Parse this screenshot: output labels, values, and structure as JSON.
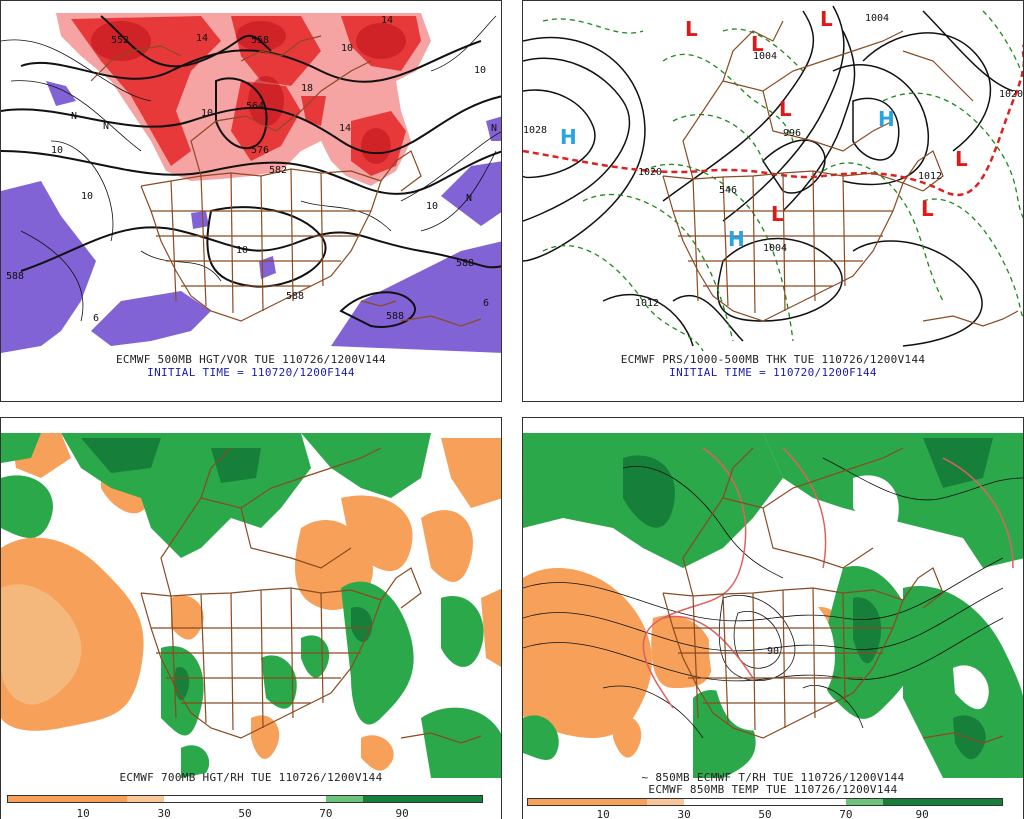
{
  "panels": {
    "top_left": {
      "caption1": "ECMWF 500MB HGT/VOR TUE 110726/1200V144",
      "caption2": "INITIAL TIME = 110720/1200F144",
      "labels": [
        "552",
        "558",
        "564",
        "576",
        "582",
        "588",
        "588",
        "588",
        "588",
        "10",
        "10",
        "10",
        "10",
        "10",
        "10",
        "10",
        "14",
        "14",
        "14",
        "18",
        "N",
        "N",
        "N",
        "N",
        "6",
        "6"
      ]
    },
    "top_right": {
      "caption1": "ECMWF PRS/1000-500MB THK TUE 110726/1200V144",
      "caption2": "INITIAL TIME = 110720/1200F144",
      "labels": [
        "1028",
        "1020",
        "1012",
        "1012",
        "1004",
        "1004",
        "1020",
        "996",
        "546",
        "1004"
      ],
      "highs": [
        "H",
        "H",
        "H"
      ],
      "lows": [
        "L",
        "L",
        "L",
        "L",
        "L",
        "L",
        "L"
      ]
    },
    "bottom_left": {
      "caption1": "ECMWF 700MB HGT/RH TUE 110726/1200V144",
      "colorbar_ticks": [
        "10",
        "30",
        "50",
        "70",
        "90"
      ]
    },
    "bottom_right": {
      "caption1": "~ 850MB ECMWF T/RH TUE 110726/1200V144",
      "caption2": "ECMWF 850MB TEMP TUE 110726/1200V144",
      "labels": [
        "90"
      ],
      "colorbar_ticks": [
        "10",
        "30",
        "50",
        "70",
        "90"
      ]
    }
  },
  "colors": {
    "vorticity_red": "#e8393a",
    "vorticity_light": "#f6a3a3",
    "neg_vorticity": "#8263d6",
    "dry_orange": "#f7a05a",
    "moist_green": "#2aa84a",
    "moist_dark": "#16803a",
    "borders": "#8a4a22",
    "high_blue": "#28a4e0",
    "low_red": "#e01818",
    "thickness_green": "#1a8a1a",
    "thickness_red": "#dd2020",
    "caption_blue": "#1a1ab0"
  }
}
